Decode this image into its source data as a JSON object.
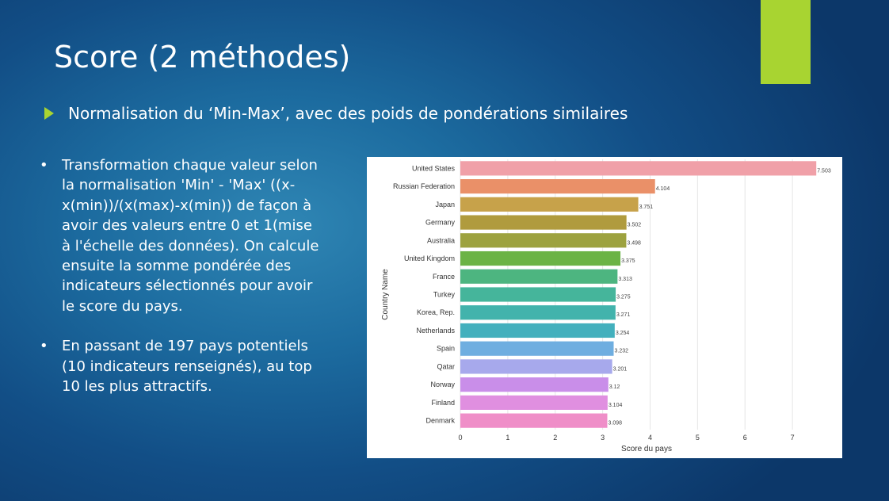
{
  "slide": {
    "title": "Score (2 méthodes)",
    "subtitle": "Normalisation du ‘Min-Max’, avec des poids de pondérations similaires",
    "bullet_glyph": "•",
    "bullets": [
      "Transformation chaque valeur selon la normalisation 'Min' - 'Max' ((x-x(min))/(x(max)-x(min)) de façon à avoir des valeurs entre 0 et 1(mise à l'échelle des données). On calcule ensuite la somme pondérée des indicateurs sélectionnés pour avoir le score du pays.",
      "En passant de 197 pays potentiels (10 indicateurs renseignés), au top 10 les plus attractifs."
    ],
    "accent_color": "#a8d431"
  },
  "chart_data": {
    "type": "bar",
    "orientation": "horizontal",
    "categories": [
      "United States",
      "Russian Federation",
      "Japan",
      "Germany",
      "Australia",
      "United Kingdom",
      "France",
      "Turkey",
      "Korea, Rep.",
      "Netherlands",
      "Spain",
      "Qatar",
      "Norway",
      "Finland",
      "Denmark"
    ],
    "values": [
      7.503,
      4.104,
      3.751,
      3.502,
      3.498,
      3.375,
      3.313,
      3.275,
      3.271,
      3.254,
      3.232,
      3.201,
      3.12,
      3.104,
      3.098
    ],
    "data_labels": [
      "7.503",
      "4.104",
      "3.751",
      "3.502",
      "3.498",
      "3.375",
      "3.313",
      "3.275",
      "3.271",
      "3.254",
      "3.232",
      "3.201",
      "3.12",
      "3.104",
      "3.098"
    ],
    "colors": [
      "#f0a0a8",
      "#ea9068",
      "#c7a24a",
      "#b09b3e",
      "#9da23f",
      "#6bb345",
      "#4db580",
      "#45b59b",
      "#42b3ac",
      "#43b0bd",
      "#6faee0",
      "#a7a9ec",
      "#c98ee9",
      "#e08fe0",
      "#ef8ec8"
    ],
    "xlabel": "Score du pays",
    "ylabel": "Country Name",
    "xlim": [
      0,
      7.85
    ],
    "xticks": [
      0,
      1,
      2,
      3,
      4,
      5,
      6,
      7
    ],
    "grid": "x"
  }
}
